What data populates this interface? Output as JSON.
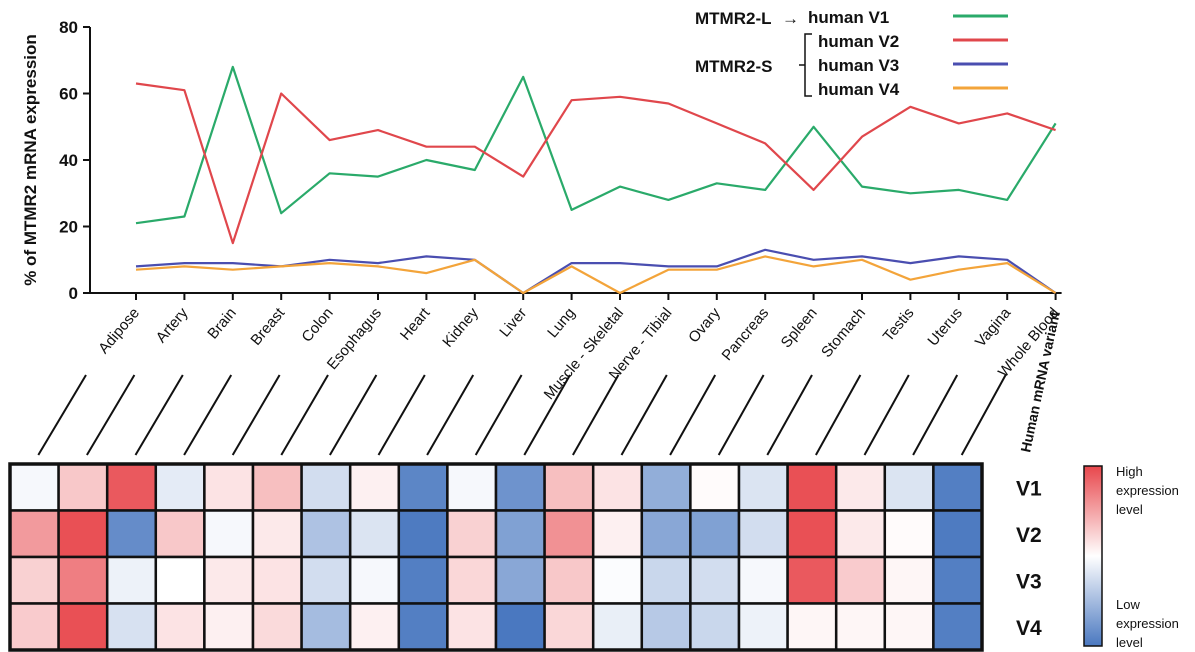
{
  "chart_data": [
    {
      "type": "line",
      "ylabel": "% of MTMR2 mRNA expression",
      "ylim": [
        0,
        80
      ],
      "yticks": [
        0,
        20,
        40,
        60,
        80
      ],
      "grid": false,
      "categories": [
        "Adipose",
        "Artery",
        "Brain",
        "Breast",
        "Colon",
        "Esophagus",
        "Heart",
        "Kidney",
        "Liver",
        "Lung",
        "Muscle - Skeletal",
        "Nerve - Tibial",
        "Ovary",
        "Pancreas",
        "Spleen",
        "Stomach",
        "Testis",
        "Uterus",
        "Vagina",
        "Whole Blood"
      ],
      "series": [
        {
          "name": "human V1",
          "color": "#2aaa6a",
          "values": [
            21,
            23,
            68,
            24,
            36,
            35,
            40,
            37,
            65,
            25,
            32,
            28,
            33,
            31,
            50,
            32,
            30,
            31,
            28,
            51
          ]
        },
        {
          "name": "human V2",
          "color": "#e0474c",
          "values": [
            63,
            61,
            15,
            60,
            46,
            49,
            44,
            44,
            35,
            58,
            59,
            57,
            51,
            45,
            31,
            47,
            56,
            51,
            54,
            49
          ]
        },
        {
          "name": "human V3",
          "color": "#4a4eb0",
          "values": [
            8,
            9,
            9,
            8,
            10,
            9,
            11,
            10,
            0,
            9,
            9,
            8,
            8,
            13,
            10,
            11,
            9,
            11,
            10,
            0
          ]
        },
        {
          "name": "human V4",
          "color": "#f3a43a",
          "values": [
            7,
            8,
            7,
            8,
            9,
            8,
            6,
            10,
            0,
            8,
            0,
            7,
            7,
            11,
            8,
            10,
            4,
            7,
            9,
            0
          ]
        }
      ],
      "legend": {
        "placement": "top-right",
        "group_long": "MTMR2-L",
        "group_short": "MTMR2-S",
        "arrow": "→"
      }
    },
    {
      "type": "heatmap",
      "column_header": "Human mRNA variant",
      "rows": [
        "V1",
        "V2",
        "V3",
        "V4"
      ],
      "columns": [
        "Adipose",
        "Artery",
        "Brain",
        "Breast",
        "Colon",
        "Esophagus",
        "Heart",
        "Kidney",
        "Liver",
        "Lung",
        "Muscle - Skeletal",
        "Nerve - Tibial",
        "Ovary",
        "Pancreas",
        "Spleen",
        "Stomach",
        "Testis",
        "Uterus",
        "Vagina",
        "Whole Blood"
      ],
      "values": [
        [
          -0.05,
          0.3,
          0.9,
          -0.15,
          0.15,
          0.35,
          -0.25,
          0.08,
          -0.9,
          -0.05,
          -0.8,
          0.35,
          0.15,
          -0.6,
          0.02,
          -0.2,
          0.95,
          0.12,
          -0.2,
          -0.95
        ],
        [
          0.55,
          0.95,
          -0.85,
          0.3,
          -0.05,
          0.12,
          -0.45,
          -0.2,
          -0.98,
          0.25,
          -0.7,
          0.6,
          0.08,
          -0.65,
          -0.7,
          -0.25,
          0.95,
          0.12,
          0.02,
          -0.98
        ],
        [
          0.25,
          0.7,
          -0.1,
          0.0,
          0.12,
          0.15,
          -0.25,
          -0.05,
          -0.95,
          0.22,
          -0.65,
          0.3,
          -0.02,
          -0.3,
          -0.25,
          -0.05,
          0.9,
          0.28,
          0.05,
          -0.95
        ],
        [
          0.28,
          0.95,
          -0.22,
          0.15,
          0.08,
          0.2,
          -0.5,
          0.08,
          -0.95,
          0.15,
          -1.0,
          0.22,
          -0.12,
          -0.4,
          -0.3,
          -0.1,
          0.05,
          0.05,
          0.05,
          -0.95
        ]
      ],
      "color_scale": {
        "high": "#e8474c",
        "mid": "#ffffff",
        "low": "#4a78c0"
      },
      "colorbar": {
        "high_label": [
          "High",
          "expression",
          "level"
        ],
        "low_label": [
          "Low",
          "expression",
          "level"
        ]
      }
    }
  ]
}
